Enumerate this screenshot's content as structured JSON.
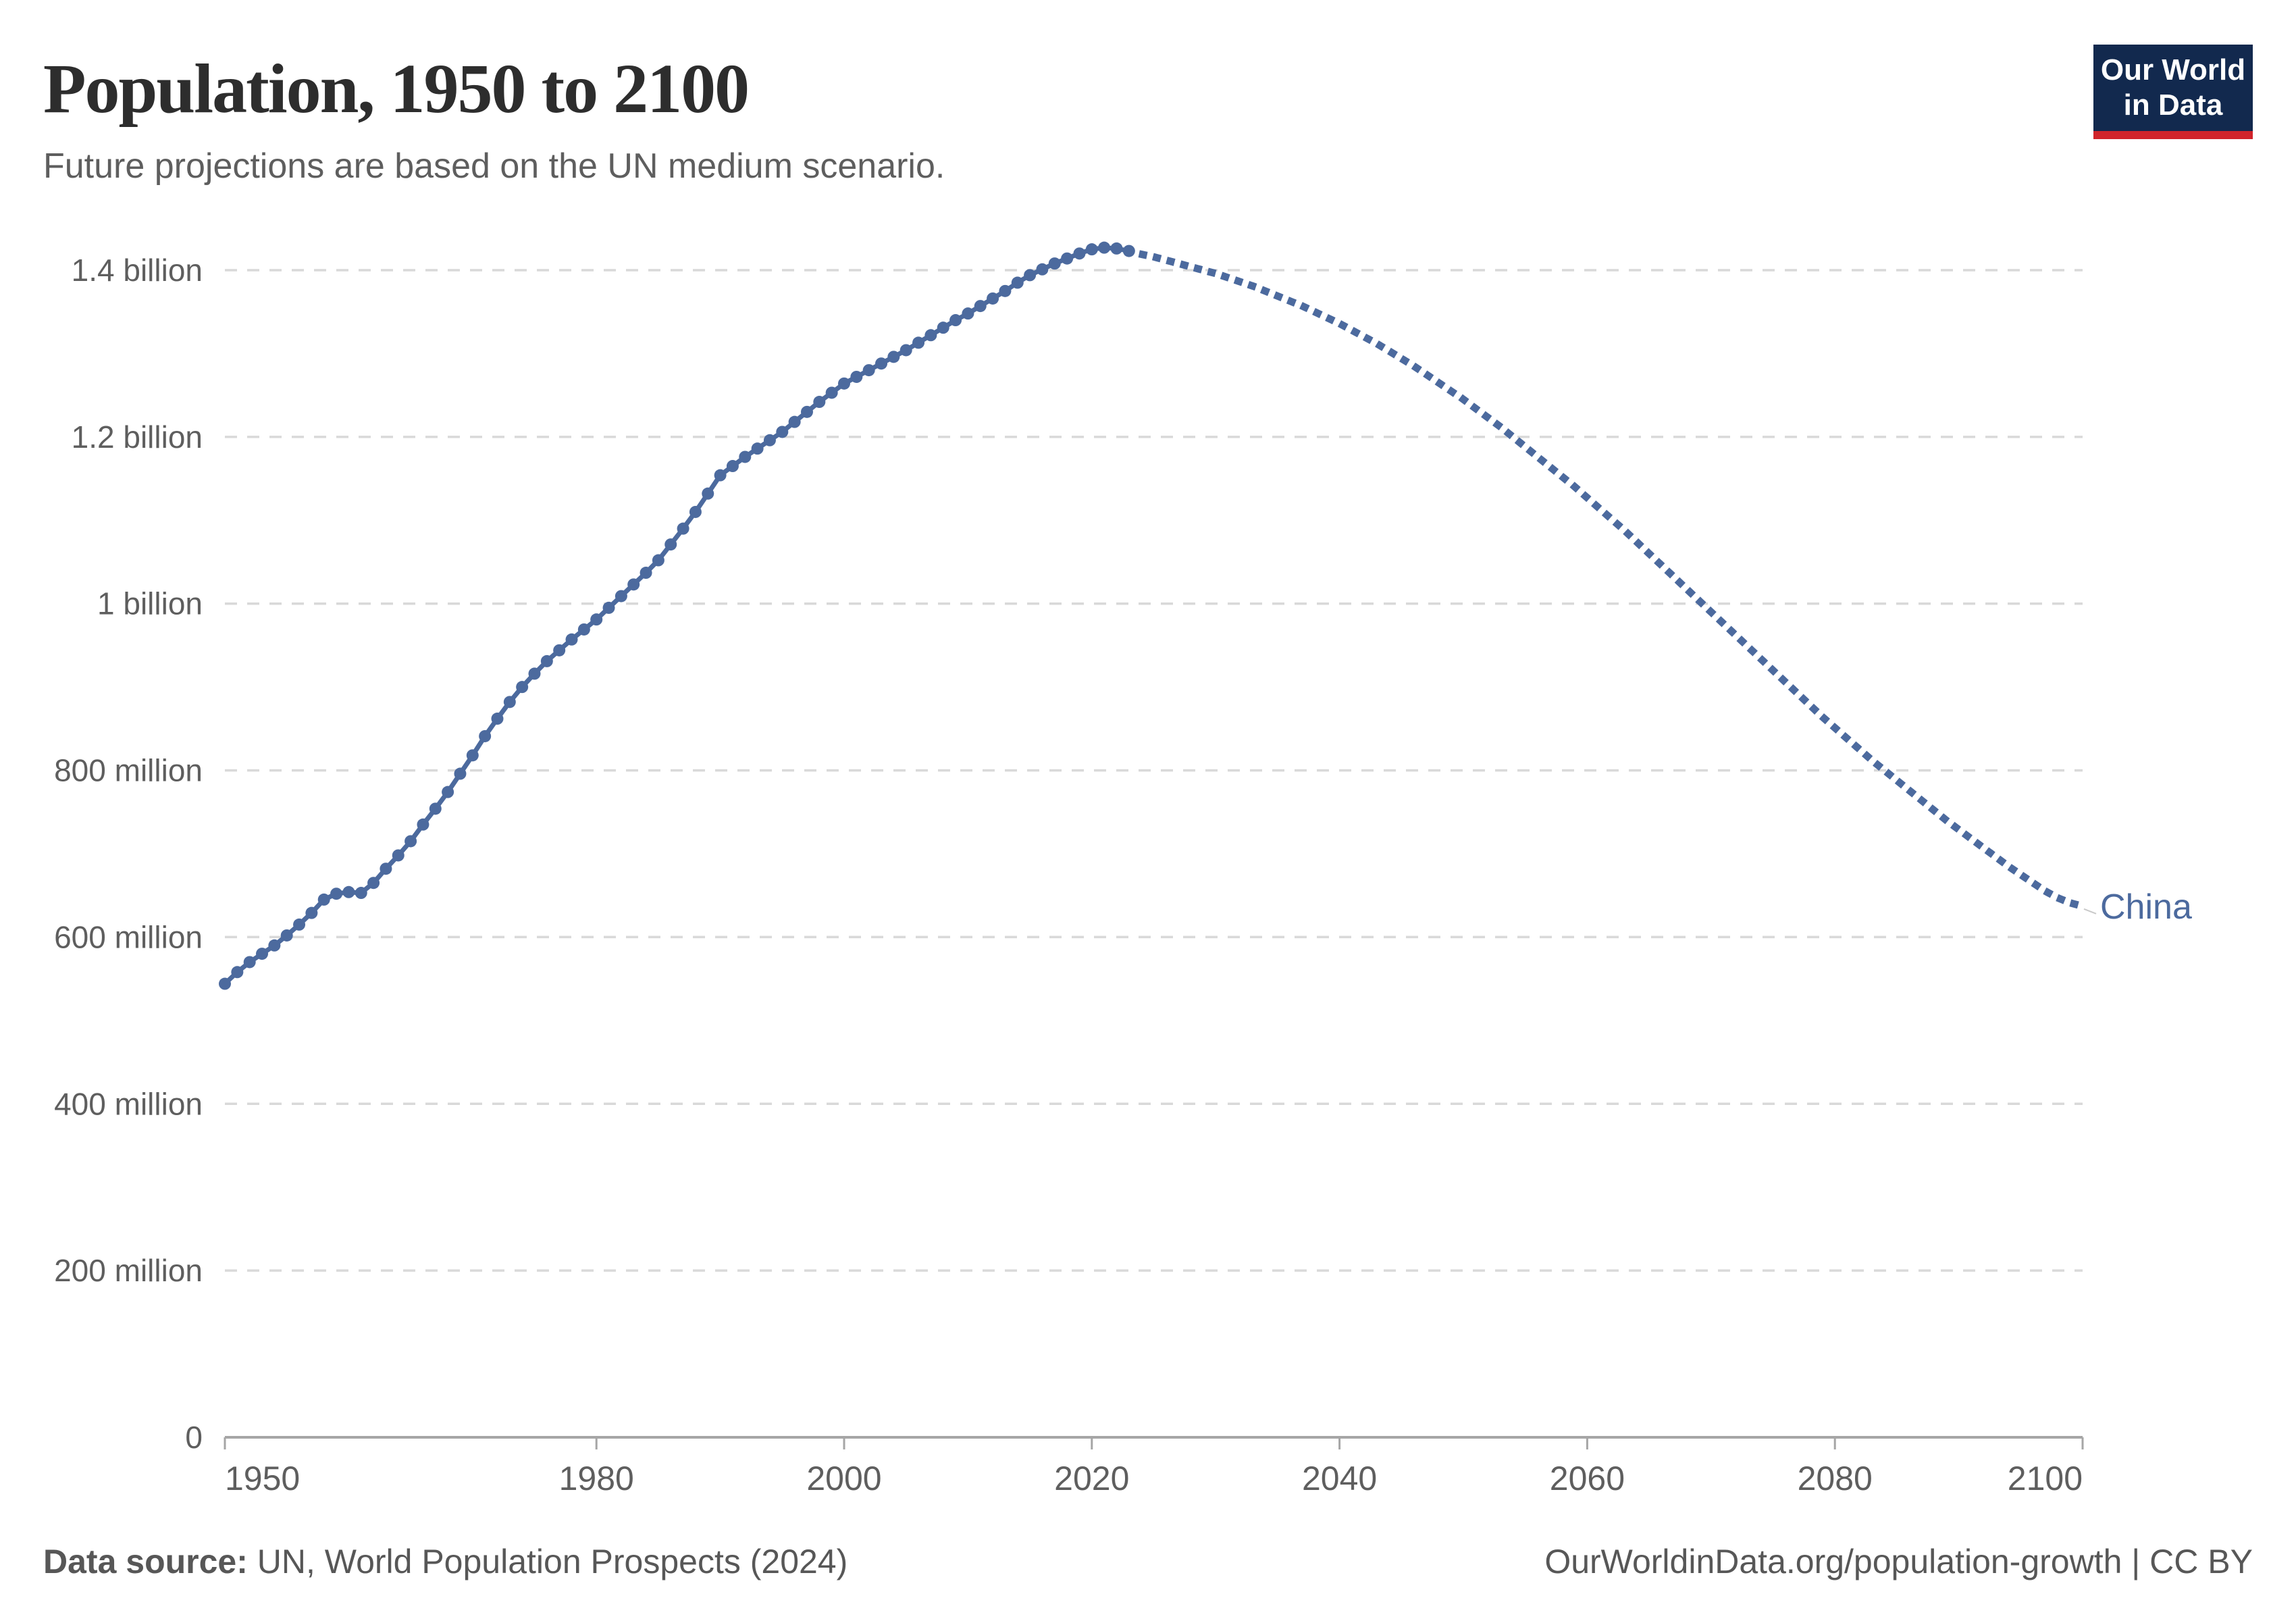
{
  "header": {
    "title": "Population, 1950 to 2100",
    "subtitle": "Future projections are based on the UN medium scenario.",
    "logo_line1": "Our World",
    "logo_line2": "in Data"
  },
  "footer": {
    "source_label": "Data source:",
    "source_text": " UN, World Population Prospects (2024)",
    "credit": "OurWorldinData.org/population-growth | CC BY"
  },
  "colors": {
    "line": "#4c6a9e",
    "grid": "#d9d9d9",
    "axis": "#a6a6a6",
    "tick_text": "#5e5e5e",
    "logo_navy": "#12294e",
    "logo_red": "#d0242b"
  },
  "chart_data": {
    "type": "line",
    "title": "Population, 1950 to 2100",
    "subtitle": "Future projections are based on the UN medium scenario.",
    "entity": "China",
    "unit": "people (millions)",
    "x_start": 1950,
    "x_end": 2100,
    "x_step": 1,
    "projection_start_year": 2024,
    "grid": true,
    "legend_position": "end-of-line-label",
    "xticks": [
      1950,
      1980,
      2000,
      2020,
      2040,
      2060,
      2080,
      2100
    ],
    "yticks": [
      {
        "value": 0,
        "label": "0"
      },
      {
        "value": 200,
        "label": "200 million"
      },
      {
        "value": 400,
        "label": "400 million"
      },
      {
        "value": 600,
        "label": "600 million"
      },
      {
        "value": 800,
        "label": "800 million"
      },
      {
        "value": 1000,
        "label": "1 billion"
      },
      {
        "value": 1200,
        "label": "1.2 billion"
      },
      {
        "value": 1400,
        "label": "1.4 billion"
      }
    ],
    "ylim": [
      0,
      1450
    ],
    "series": [
      {
        "name": "China",
        "values_millions": [
          544,
          558,
          570,
          580,
          590,
          602,
          615,
          629,
          645,
          652,
          654,
          653,
          665,
          682,
          698,
          715,
          735,
          754,
          774,
          796,
          818,
          841,
          862,
          882,
          900,
          916,
          931,
          944,
          957,
          969,
          981,
          995,
          1009,
          1023,
          1037,
          1052,
          1071,
          1090,
          1110,
          1132,
          1154,
          1165,
          1176,
          1186,
          1196,
          1206,
          1218,
          1230,
          1242,
          1253,
          1264,
          1272,
          1280,
          1288,
          1296,
          1304,
          1313,
          1322,
          1331,
          1340,
          1348,
          1357,
          1366,
          1375,
          1385,
          1394,
          1401,
          1408,
          1414,
          1420,
          1425,
          1427,
          1426,
          1423,
          1419,
          1416,
          1412,
          1408,
          1404,
          1400,
          1396,
          1391,
          1386,
          1381,
          1375,
          1369,
          1363,
          1357,
          1350,
          1343,
          1336,
          1328,
          1320,
          1312,
          1303,
          1294,
          1285,
          1275,
          1265,
          1255,
          1245,
          1234,
          1223,
          1212,
          1200,
          1188,
          1176,
          1164,
          1152,
          1140,
          1127,
          1114,
          1101,
          1088,
          1074,
          1060,
          1046,
          1032,
          1018,
          1004,
          990,
          976,
          962,
          948,
          934,
          920,
          906,
          892,
          878,
          864,
          851,
          838,
          825,
          812,
          800,
          788,
          776,
          764,
          752,
          740,
          729,
          718,
          707,
          696,
          685,
          675,
          665,
          655,
          647,
          641,
          637
        ]
      }
    ]
  },
  "layout_note": "historical data drawn as solid dotted-bead line through 2023, projection drawn as dotted line 2024-2100"
}
